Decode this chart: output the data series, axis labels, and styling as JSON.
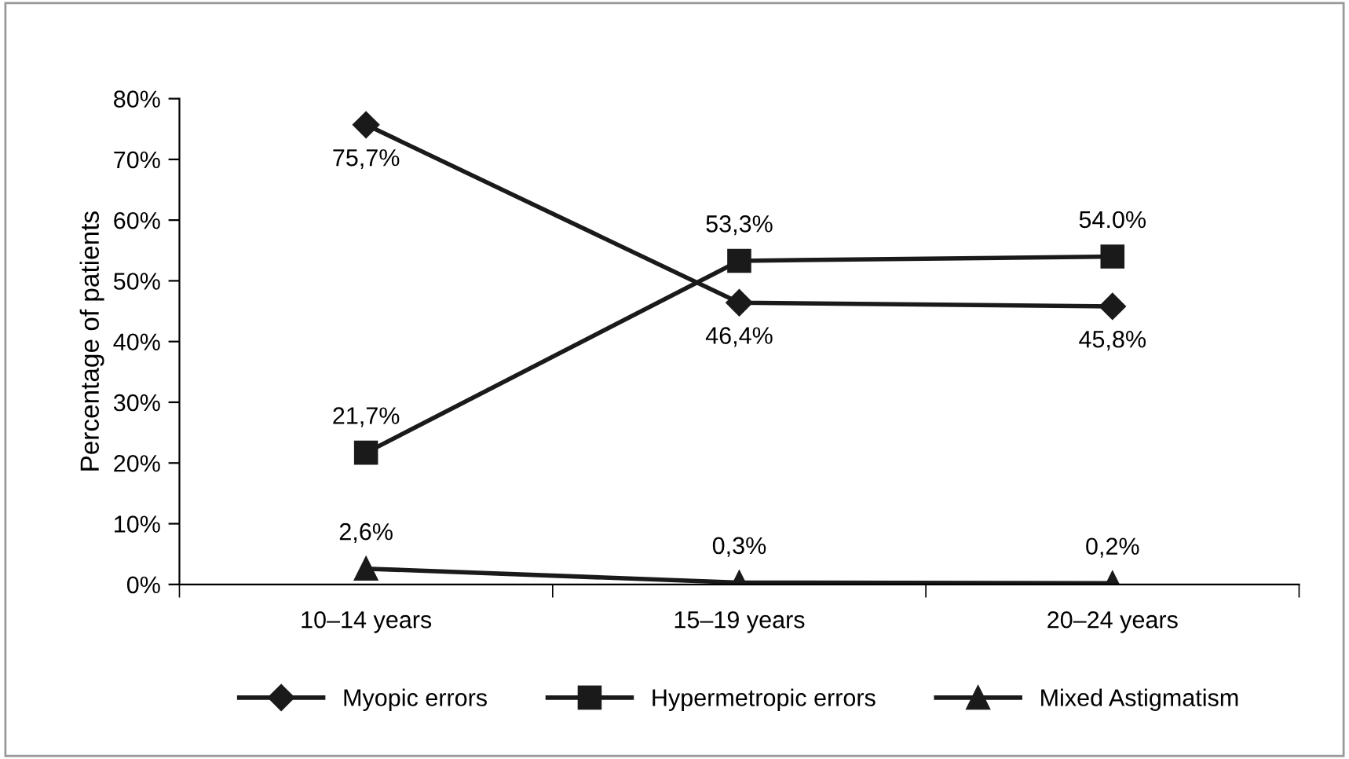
{
  "chart_data": {
    "type": "line",
    "ylabel": "Percentage of patients",
    "categories": [
      "10–14 years",
      "15–19 years",
      "20–24 years"
    ],
    "series": [
      {
        "name": "Myopic errors",
        "color": "#1a1a1a",
        "marker": "diamond",
        "values": [
          75.7,
          46.4,
          45.8
        ],
        "value_labels": [
          "75,7%",
          "46,4%",
          "45,8%"
        ]
      },
      {
        "name": "Hypermetropic errors",
        "color": "#1a1a1a",
        "marker": "square",
        "values": [
          21.7,
          53.3,
          54.0
        ],
        "value_labels": [
          "21,7%",
          "53,3%",
          "54.0%"
        ]
      },
      {
        "name": "Mixed Astigmatism",
        "color": "#1a1a1a",
        "marker": "triangle",
        "values": [
          2.6,
          0.3,
          0.2
        ],
        "value_labels": [
          "2,6%",
          "0,3%",
          "0,2%"
        ]
      }
    ],
    "ylim": [
      0,
      80
    ],
    "yticks": [
      {
        "value": 0,
        "label": "0%"
      },
      {
        "value": 10,
        "label": "10%"
      },
      {
        "value": 20,
        "label": "20%"
      },
      {
        "value": 30,
        "label": "30%"
      },
      {
        "value": 40,
        "label": "40%"
      },
      {
        "value": 50,
        "label": "50%"
      },
      {
        "value": 60,
        "label": "60%"
      },
      {
        "value": 70,
        "label": "70%"
      },
      {
        "value": 80,
        "label": "80%"
      }
    ],
    "grid": false,
    "legend": "bottom",
    "line_style": "solid"
  }
}
